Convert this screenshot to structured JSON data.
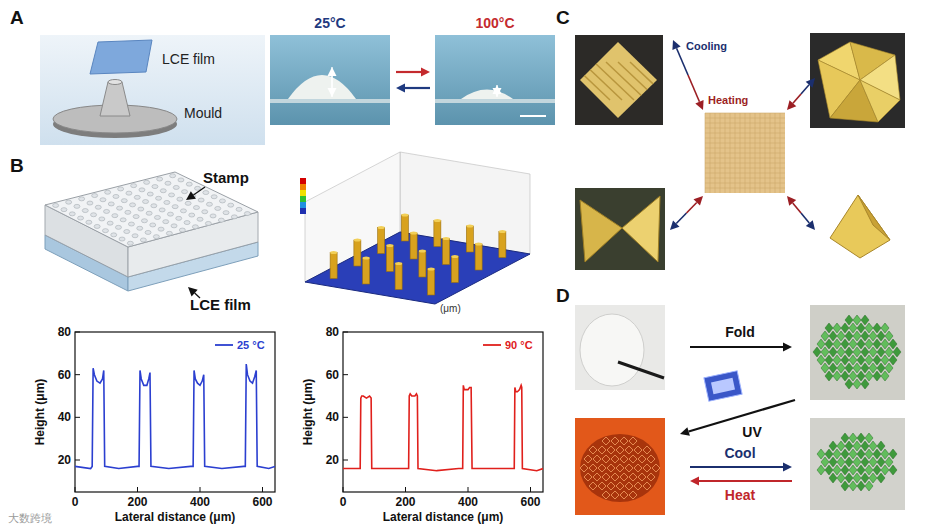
{
  "chart_data": [
    {
      "type": "line",
      "x": [
        0,
        50,
        55,
        58,
        62,
        70,
        80,
        88,
        92,
        95,
        140,
        200,
        205,
        208,
        212,
        220,
        230,
        236,
        240,
        243,
        300,
        370,
        378,
        381,
        385,
        392,
        400,
        407,
        412,
        415,
        470,
        540,
        545,
        548,
        552,
        560,
        568,
        575,
        580,
        583,
        620,
        640
      ],
      "series": [
        {
          "name": "25 °C",
          "color": "#2b3fd0",
          "values": [
            17,
            16,
            17,
            63,
            60,
            57,
            56,
            58,
            62,
            17,
            16,
            17,
            17,
            62,
            58,
            55,
            55,
            58,
            61,
            17,
            16,
            17,
            17,
            62,
            58,
            56,
            55,
            57,
            60,
            17,
            16,
            17,
            17,
            65,
            60,
            57,
            56,
            59,
            62,
            17,
            16,
            17
          ]
        }
      ],
      "xlabel": "Lateral distance (μm)",
      "ylabel": "Height (μm)",
      "xlim": [
        0,
        640
      ],
      "ylim": [
        5,
        80
      ],
      "xticks": [
        0,
        200,
        400,
        600
      ],
      "yticks": [
        20,
        40,
        60,
        80
      ],
      "legend": "upper right"
    },
    {
      "type": "line",
      "x": [
        0,
        50,
        55,
        57,
        60,
        65,
        75,
        85,
        90,
        92,
        140,
        200,
        210,
        212,
        215,
        220,
        230,
        235,
        238,
        240,
        300,
        370,
        383,
        385,
        388,
        393,
        400,
        405,
        410,
        413,
        470,
        540,
        548,
        550,
        553,
        558,
        565,
        570,
        572,
        574,
        620,
        640
      ],
      "series": [
        {
          "name": "90 °C",
          "color": "#e0201c",
          "values": [
            16,
            16,
            16,
            49,
            50,
            50,
            49,
            50,
            49,
            16,
            16,
            16,
            16,
            50,
            51,
            50,
            50,
            51,
            50,
            16,
            15,
            16,
            16,
            55,
            53,
            53,
            53,
            54,
            54,
            16,
            16,
            16,
            16,
            54,
            52,
            52,
            53,
            55,
            54,
            16,
            15,
            16
          ]
        }
      ],
      "xlabel": "Lateral distance (μm)",
      "ylabel": "Height (μm)",
      "xlim": [
        0,
        640
      ],
      "ylim": [
        5,
        80
      ],
      "xticks": [
        0,
        200,
        400,
        600
      ],
      "yticks": [
        20,
        40,
        60,
        80
      ],
      "legend": "upper right"
    }
  ],
  "figure": {
    "panels": [
      {
        "letter": "A",
        "film_label": "LCE film",
        "mould_label": "Mould",
        "temperatures": [
          "25°C",
          "100°C"
        ]
      },
      {
        "letter": "B",
        "stamp_label": "Stamp",
        "film_label": "LCE film",
        "surface_axis_unit": "(μm)"
      },
      {
        "letter": "C",
        "cooling": "Cooling",
        "heating": "Heating"
      },
      {
        "letter": "D",
        "fold": "Fold",
        "uv": "UV",
        "cool": "Cool",
        "heat": "Heat"
      }
    ],
    "watermark": "大数跨境"
  }
}
